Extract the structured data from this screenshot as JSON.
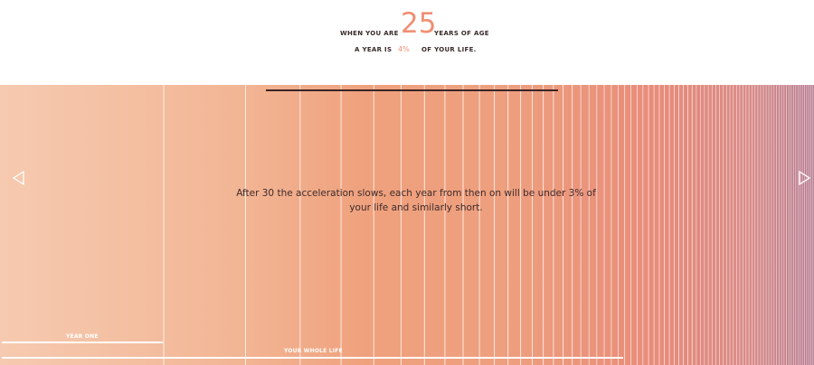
{
  "header": {
    "line1_before": "WHEN YOU ARE",
    "age": "25",
    "line1_after": "YEARS OF AGE",
    "line2_before": "A YEAR IS",
    "percent": "4%",
    "line2_after": "OF YOUR LIFE."
  },
  "caption": "After 30 the acceleration slows, each year from then on will be under 3% of your life and similarly short.",
  "labels": {
    "year_one": "YEAR ONE",
    "whole_life": "YOUR WHOLE LIFE"
  },
  "nav": {
    "prev_icon": "triangle-left-outline-icon",
    "next_icon": "triangle-right-outline-icon"
  },
  "colors": {
    "accent": "#ef8f73",
    "strip_start": "#f5c8ab",
    "strip_mid": "#efa07c",
    "strip_late": "#e88a78",
    "strip_end": "#b87a92"
  }
}
